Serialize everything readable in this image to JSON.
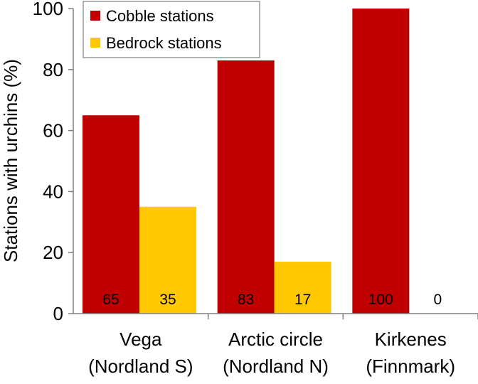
{
  "chart_data": {
    "type": "bar",
    "ylabel": "Stations with urchins (%)",
    "xlabel": "",
    "ylim": [
      0,
      100
    ],
    "yticks": [
      0,
      20,
      40,
      60,
      80,
      100
    ],
    "grid": false,
    "legend_position": "top-left",
    "categories": [
      [
        "Vega",
        "(Nordland S)"
      ],
      [
        "Arctic circle",
        "(Nordland N)"
      ],
      [
        "Kirkenes",
        "(Finnmark)"
      ]
    ],
    "series": [
      {
        "name": "Cobble stations",
        "color": "#C00000",
        "values": [
          65,
          83,
          100
        ]
      },
      {
        "name": "Bedrock stations",
        "color": "#FFC800",
        "values": [
          35,
          17,
          0
        ]
      }
    ],
    "data_labels": [
      [
        "65",
        "83",
        "100"
      ],
      [
        "35",
        "17",
        "0"
      ]
    ]
  }
}
